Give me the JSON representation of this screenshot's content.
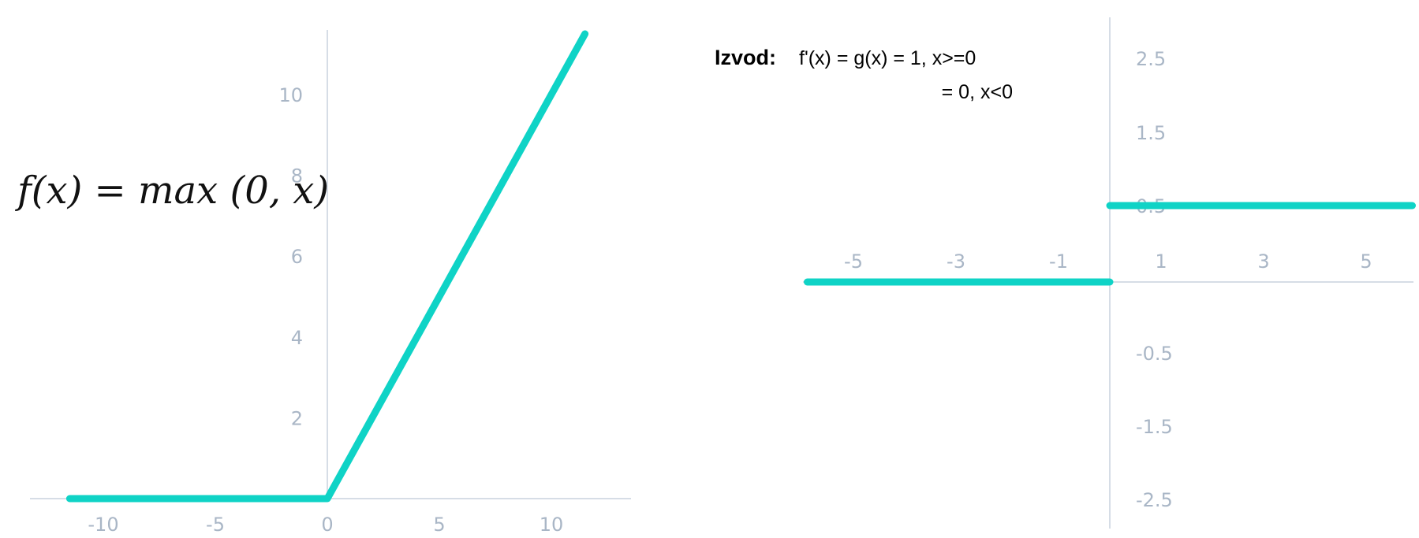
{
  "chart_data": [
    {
      "type": "line",
      "title": "",
      "xlabel": "",
      "ylabel": "",
      "annotation": "f(x) = max (0, x)",
      "xlim": [
        -11.5,
        11.5
      ],
      "ylim": [
        0,
        10
      ],
      "x_ticks": [
        "-10",
        "-5",
        "0",
        "5",
        "10"
      ],
      "y_ticks": [
        "2",
        "4",
        "6",
        "8",
        "10"
      ],
      "series": [
        {
          "x": [
            -11.5,
            0,
            11.5
          ],
          "y": [
            0,
            0,
            11.5
          ]
        }
      ],
      "grid": false,
      "colors": {
        "curve": "#0fd3c6",
        "axis": "#c9d2dd",
        "tick": "#a9b6c6"
      }
    },
    {
      "type": "line",
      "title": "",
      "xlabel": "",
      "ylabel": "",
      "annotation": {
        "label": "Izvod:",
        "line1": "f'(x) = g(x) = 1, x>=0",
        "line2": "= 0, x<0"
      },
      "xlim": [
        -5.9,
        5.9
      ],
      "x_ticks": [
        "-5",
        "-3",
        "-1",
        "1",
        "3",
        "5"
      ],
      "y_ticks": [
        "2.5",
        "1.5",
        "0.5",
        "-0.5",
        "-1.5",
        "-2.5"
      ],
      "series": [
        {
          "x": [
            -5.9,
            0
          ],
          "y": [
            0,
            0
          ]
        },
        {
          "x": [
            0,
            5.9
          ],
          "y": [
            1,
            1
          ]
        }
      ],
      "grid": false,
      "colors": {
        "curve": "#0fd3c6",
        "axis": "#c9d2dd",
        "tick": "#a9b6c6"
      }
    }
  ]
}
